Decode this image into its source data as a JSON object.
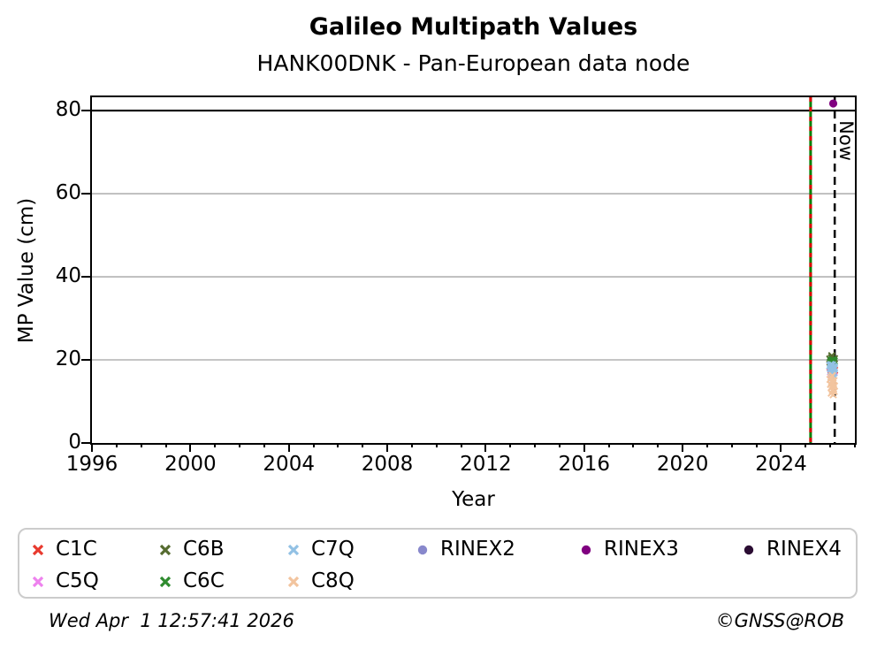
{
  "footer": {
    "timestamp": "Wed Apr  1 12:57:41 2026",
    "credit": "©GNSS@ROB"
  },
  "chart_data": {
    "type": "scatter",
    "title": "Galileo Multipath Values",
    "subtitle": "HANK00DNK - Pan-European data node",
    "xlabel": "Year",
    "ylabel": "MP Value (cm)",
    "xlim": [
      1996,
      2027
    ],
    "ylim": [
      0,
      83.2
    ],
    "xticks": [
      1996,
      2000,
      2004,
      2008,
      2012,
      2016,
      2020,
      2024
    ],
    "xtick_minor_step": 1,
    "yticks": [
      0,
      20,
      40,
      60,
      80
    ],
    "grid": "horizontal",
    "grid_color": "#b2b2b2",
    "frame_color": "#000000",
    "hline": {
      "y": 80,
      "color": "#000000"
    },
    "vlines": [
      {
        "name": "event-line",
        "x": 2025.2,
        "style": "solid-green-red-dashed",
        "color_solid": "#008000",
        "color_dash": "#dd0000"
      },
      {
        "name": "now-line",
        "x": 2026.18,
        "style": "black-dashed",
        "color": "#000000",
        "label": "Now"
      }
    ],
    "legend": {
      "position": "below",
      "rows": [
        [
          "C1C",
          "C6B",
          "C7Q",
          "RINEX2",
          "RINEX3",
          "RINEX4"
        ],
        [
          "C5Q",
          "C6C",
          "C8Q"
        ]
      ]
    },
    "series": [
      {
        "name": "C1C",
        "marker": "x",
        "color": "#e8392e",
        "points": [
          [
            2025.99,
            18.3
          ],
          [
            2026.03,
            17.6
          ],
          [
            2026.07,
            18.7
          ],
          [
            2026.11,
            17.2
          ],
          [
            2026.15,
            18.0
          ],
          [
            2026.17,
            17.5
          ]
        ]
      },
      {
        "name": "C5Q",
        "marker": "x",
        "color": "#ee82ee",
        "points": [
          [
            2026.01,
            17.1
          ],
          [
            2026.05,
            16.5
          ],
          [
            2026.09,
            17.8
          ],
          [
            2026.13,
            16.2
          ],
          [
            2026.16,
            17.0
          ]
        ]
      },
      {
        "name": "C6B",
        "marker": "x",
        "color": "#556b2f",
        "points": [
          [
            2025.98,
            20.2
          ],
          [
            2026.02,
            19.8
          ],
          [
            2026.05,
            20.5
          ],
          [
            2026.08,
            19.6
          ],
          [
            2026.11,
            20.1
          ],
          [
            2026.14,
            19.9
          ],
          [
            2026.17,
            20.3
          ],
          [
            2026.06,
            21.0
          ]
        ]
      },
      {
        "name": "C6C",
        "marker": "x",
        "color": "#2e8b2e",
        "points": [
          [
            2026.0,
            19.4
          ],
          [
            2026.04,
            19.9
          ],
          [
            2026.07,
            19.2
          ],
          [
            2026.1,
            20.0
          ],
          [
            2026.13,
            19.5
          ],
          [
            2026.16,
            19.7
          ]
        ]
      },
      {
        "name": "C7Q",
        "marker": "x",
        "color": "#92c1e4",
        "points": [
          [
            2025.98,
            18.6
          ],
          [
            2026.0,
            17.9
          ],
          [
            2026.02,
            18.9
          ],
          [
            2026.03,
            17.3
          ],
          [
            2026.05,
            18.2
          ],
          [
            2026.06,
            16.8
          ],
          [
            2026.08,
            17.7
          ],
          [
            2026.09,
            18.8
          ],
          [
            2026.11,
            16.4
          ],
          [
            2026.12,
            17.5
          ],
          [
            2026.14,
            18.4
          ],
          [
            2026.15,
            16.9
          ],
          [
            2026.16,
            17.8
          ],
          [
            2026.17,
            18.1
          ],
          [
            2026.04,
            15.9
          ],
          [
            2026.1,
            15.6
          ]
        ]
      },
      {
        "name": "C8Q",
        "marker": "x",
        "color": "#f2c49e",
        "points": [
          [
            2025.99,
            15.3
          ],
          [
            2026.01,
            14.1
          ],
          [
            2026.03,
            15.8
          ],
          [
            2026.05,
            13.4
          ],
          [
            2026.07,
            14.9
          ],
          [
            2026.09,
            12.6
          ],
          [
            2026.11,
            14.4
          ],
          [
            2026.13,
            13.0
          ],
          [
            2026.15,
            15.0
          ],
          [
            2026.17,
            13.7
          ],
          [
            2026.04,
            12.0
          ],
          [
            2026.08,
            16.2
          ],
          [
            2026.12,
            11.6
          ],
          [
            2026.16,
            12.4
          ]
        ]
      },
      {
        "name": "RINEX2",
        "marker": "o",
        "color": "#8888cc",
        "points": []
      },
      {
        "name": "RINEX3",
        "marker": "o",
        "color": "#800080",
        "points": [
          [
            2026.12,
            81.7
          ]
        ]
      },
      {
        "name": "RINEX4",
        "marker": "o",
        "color": "#2b0d33",
        "points": []
      }
    ]
  }
}
